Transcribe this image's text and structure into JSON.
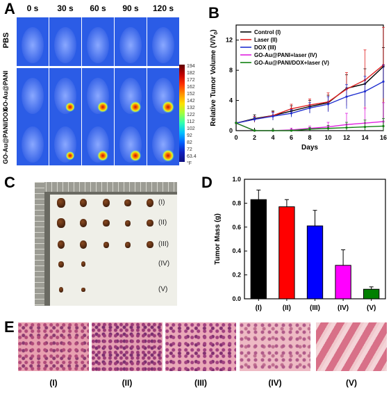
{
  "panels": {
    "a": "A",
    "b": "B",
    "c": "C",
    "d": "D",
    "e": "E"
  },
  "panel_a": {
    "time_labels": [
      "0 s",
      "30 s",
      "60 s",
      "90 s",
      "120 s"
    ],
    "row_labels": [
      "PBS",
      "GO-Au@PANI",
      "GO-Au@PANI/DOX"
    ],
    "colorbar_ticks": [
      "194",
      "182",
      "172",
      "162",
      "152",
      "142",
      "132",
      "122",
      "112",
      "102",
      "92",
      "82",
      "72",
      "63.4",
      "°F"
    ],
    "colors": {
      "cold": "#2b5ce6",
      "hot": "#c01010"
    }
  },
  "panel_c": {
    "group_labels": [
      "(I)",
      "(II)",
      "(III)",
      "(IV)",
      "(V)"
    ]
  },
  "panel_e": {
    "labels": [
      "(I)",
      "(II)",
      "(III)",
      "(IV)",
      "(V)"
    ]
  },
  "chart_data": [
    {
      "type": "line",
      "panel": "B",
      "xlabel": "Days",
      "ylabel": "Relative Tumor Volume (V/V",
      "ylabel_sub": "0",
      "ylabel_end": ")",
      "x": [
        0,
        2,
        4,
        6,
        8,
        10,
        12,
        14,
        16
      ],
      "xlim": [
        0,
        16
      ],
      "ylim": [
        0,
        14
      ],
      "xticks": [
        "0",
        "2",
        "4",
        "6",
        "8",
        "10",
        "12",
        "14",
        "16"
      ],
      "yticks": [
        "0",
        "4",
        "8",
        "12"
      ],
      "legend_position": "top-left",
      "series": [
        {
          "name": "Control (I)",
          "color": "#000000",
          "values": [
            1.0,
            1.6,
            2.0,
            2.6,
            3.2,
            3.7,
            5.6,
            6.2,
            8.5
          ],
          "errors": [
            0.1,
            0.5,
            0.6,
            0.7,
            0.8,
            1.0,
            1.8,
            2.0,
            2.5
          ]
        },
        {
          "name": "Laser (II)",
          "color": "#e02020",
          "values": [
            1.0,
            1.5,
            2.0,
            2.9,
            3.4,
            3.8,
            5.5,
            6.7,
            8.7
          ],
          "errors": [
            0.1,
            0.4,
            0.5,
            0.6,
            0.8,
            1.2,
            2.2,
            4.0,
            5.0
          ]
        },
        {
          "name": "DOX (III)",
          "color": "#2030d0",
          "values": [
            1.0,
            1.5,
            1.9,
            2.3,
            3.0,
            3.5,
            4.5,
            5.2,
            6.5
          ],
          "errors": [
            0.1,
            0.3,
            0.5,
            0.5,
            0.7,
            1.0,
            1.6,
            2.0,
            2.2
          ]
        },
        {
          "name": "GO-Au@PANI+laser (IV)",
          "color": "#e020e0",
          "values": [
            1.0,
            0.0,
            0.0,
            0.1,
            0.3,
            0.5,
            0.8,
            1.0,
            1.2
          ],
          "errors": [
            0.1,
            0.1,
            0.1,
            0.2,
            0.3,
            0.6,
            1.5,
            2.0,
            2.5
          ]
        },
        {
          "name": "GO-Au@PANI/DOX+laser (V)",
          "color": "#108010",
          "values": [
            1.0,
            0.0,
            0.0,
            0.0,
            0.2,
            0.3,
            0.4,
            0.5,
            0.6
          ],
          "errors": [
            0.1,
            0.1,
            0.1,
            0.1,
            0.2,
            0.4,
            0.7,
            0.9,
            1.0
          ]
        }
      ]
    },
    {
      "type": "bar",
      "panel": "D",
      "ylabel": "Tumor Mass (g)",
      "xlabel": "",
      "categories": [
        "(I)",
        "(II)",
        "(III)",
        "(IV)",
        "(V)"
      ],
      "values": [
        0.83,
        0.77,
        0.61,
        0.28,
        0.08
      ],
      "errors": [
        0.08,
        0.06,
        0.13,
        0.13,
        0.02
      ],
      "colors": [
        "#000000",
        "#ff0000",
        "#0000ff",
        "#ff00ff",
        "#008000"
      ],
      "ylim": [
        0.0,
        1.0
      ],
      "yticks": [
        "0.0",
        "0.2",
        "0.4",
        "0.6",
        "0.8",
        "1.0"
      ]
    }
  ]
}
